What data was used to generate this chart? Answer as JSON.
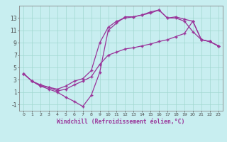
{
  "xlabel": "Windchill (Refroidissement éolien,°C)",
  "background_color": "#c8eef0",
  "grid_color": "#a0d8d0",
  "line_color": "#993399",
  "xlim": [
    -0.5,
    23.5
  ],
  "ylim": [
    -2.0,
    15.0
  ],
  "xticks": [
    0,
    1,
    2,
    3,
    4,
    5,
    6,
    7,
    8,
    9,
    10,
    11,
    12,
    13,
    14,
    15,
    16,
    17,
    18,
    19,
    20,
    21,
    22,
    23
  ],
  "yticks": [
    -1,
    1,
    3,
    5,
    7,
    9,
    11,
    13
  ],
  "line1_x": [
    0,
    1,
    2,
    3,
    4,
    5,
    6,
    7,
    8,
    9,
    10,
    11,
    12,
    13,
    14,
    15,
    16,
    17,
    18,
    19,
    20,
    21,
    22,
    23
  ],
  "line1_y": [
    4.0,
    2.8,
    2.0,
    1.5,
    1.0,
    0.2,
    -0.5,
    -1.3,
    0.5,
    4.2,
    11.0,
    12.2,
    13.2,
    13.2,
    13.5,
    13.8,
    14.3,
    13.0,
    13.0,
    12.5,
    10.8,
    9.5,
    9.2,
    8.5
  ],
  "line2_x": [
    0,
    1,
    2,
    3,
    4,
    5,
    6,
    7,
    8,
    9,
    10,
    11,
    12,
    13,
    14,
    15,
    16,
    17,
    18,
    19,
    20,
    21,
    22,
    23
  ],
  "line2_y": [
    4.0,
    2.8,
    2.2,
    1.8,
    1.5,
    2.0,
    2.8,
    3.2,
    4.5,
    9.0,
    11.5,
    12.5,
    13.0,
    13.2,
    13.5,
    14.0,
    14.3,
    13.0,
    13.2,
    12.8,
    12.5,
    9.5,
    9.2,
    8.5
  ],
  "line3_x": [
    0,
    1,
    2,
    3,
    4,
    5,
    6,
    7,
    8,
    9,
    10,
    11,
    12,
    13,
    14,
    15,
    16,
    17,
    18,
    19,
    20,
    21,
    22,
    23
  ],
  "line3_y": [
    4.0,
    2.8,
    2.0,
    1.8,
    1.2,
    1.5,
    2.2,
    2.8,
    3.5,
    5.5,
    7.0,
    7.5,
    8.0,
    8.2,
    8.5,
    8.8,
    9.2,
    9.5,
    10.0,
    10.5,
    12.5,
    9.5,
    9.2,
    8.5
  ]
}
